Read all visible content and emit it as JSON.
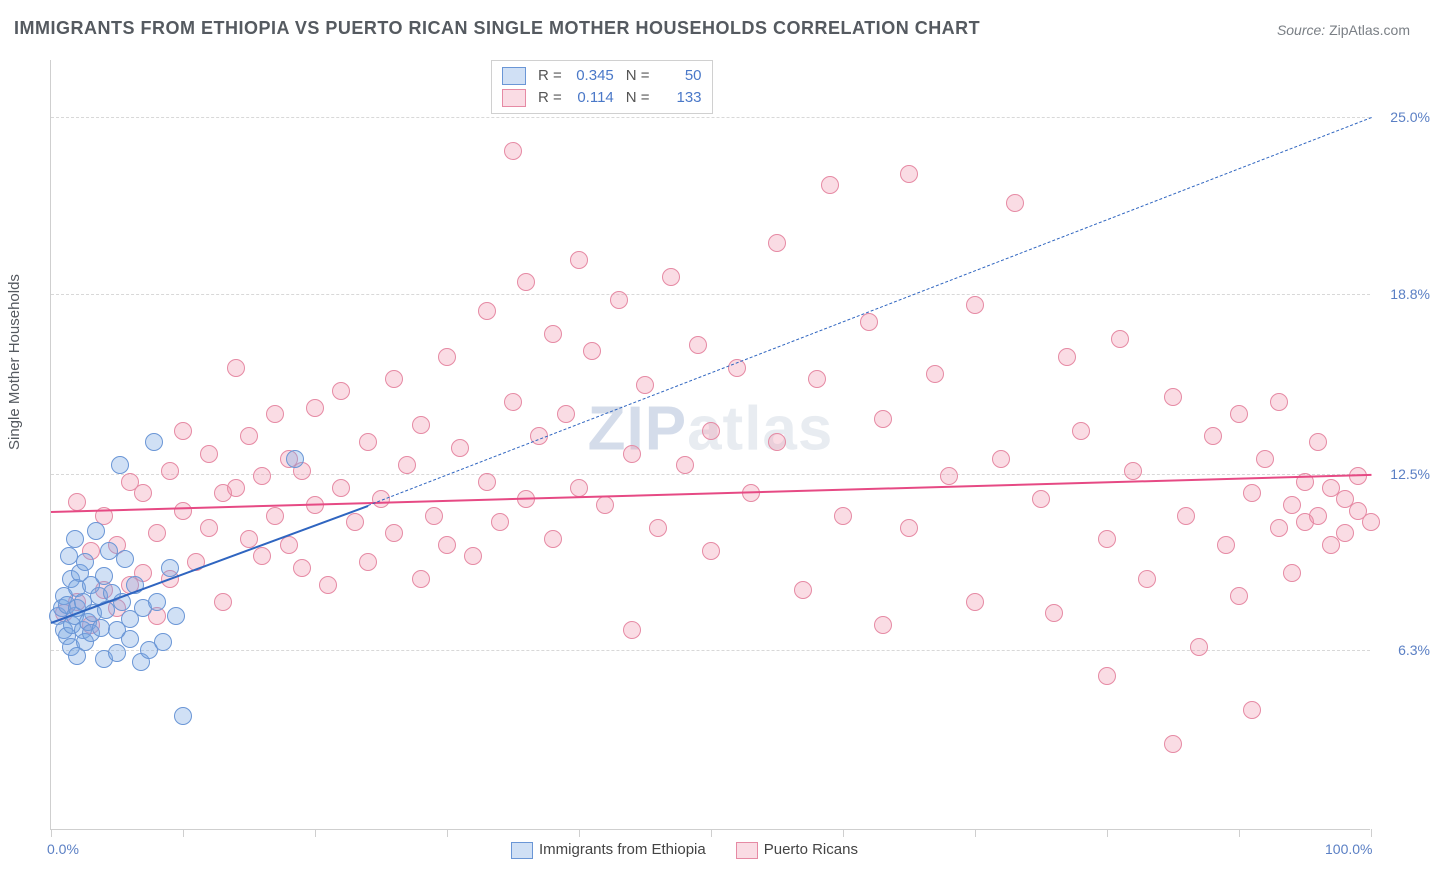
{
  "title": "IMMIGRANTS FROM ETHIOPIA VS PUERTO RICAN SINGLE MOTHER HOUSEHOLDS CORRELATION CHART",
  "source_label": "Source:",
  "source_value": "ZipAtlas.com",
  "yaxis_label": "Single Mother Households",
  "watermark": {
    "prefix": "ZIP",
    "suffix": "atlas"
  },
  "chart": {
    "type": "scatter",
    "background_color": "#ffffff",
    "xlim": [
      0,
      100
    ],
    "ylim": [
      0,
      27
    ],
    "ytick_values": [
      6.3,
      12.5,
      18.8,
      25.0
    ],
    "ytick_labels": [
      "6.3%",
      "12.5%",
      "18.8%",
      "25.0%"
    ],
    "xtick_positions": [
      0,
      10,
      20,
      30,
      40,
      50,
      60,
      70,
      80,
      90,
      100
    ],
    "xtick_labels": {
      "0": "0.0%",
      "100": "100.0%"
    },
    "grid_color": "#d8d8d8",
    "marker_radius": 9,
    "marker_border_width": 1.2,
    "series": [
      {
        "id": "ethiopia",
        "label": "Immigrants from Ethiopia",
        "fill_color": "rgba(120, 165, 225, 0.35)",
        "stroke_color": "#6a96d6",
        "R": "0.345",
        "N": "50",
        "trend": {
          "x1": 0,
          "y1": 7.3,
          "x2": 24,
          "y2": 11.4,
          "dash_x1": 24,
          "dash_y1": 11.4,
          "dash_x2": 100,
          "dash_y2": 25.0,
          "color": "#2f65c0",
          "width": 2.2
        },
        "points": [
          [
            0.5,
            7.5
          ],
          [
            0.8,
            7.8
          ],
          [
            1.0,
            7.0
          ],
          [
            1.0,
            8.2
          ],
          [
            1.2,
            6.8
          ],
          [
            1.2,
            7.9
          ],
          [
            1.4,
            9.6
          ],
          [
            1.5,
            6.4
          ],
          [
            1.5,
            8.8
          ],
          [
            1.6,
            7.2
          ],
          [
            1.8,
            7.5
          ],
          [
            1.8,
            10.2
          ],
          [
            2.0,
            6.1
          ],
          [
            2.0,
            7.8
          ],
          [
            2.0,
            8.5
          ],
          [
            2.2,
            9.0
          ],
          [
            2.4,
            7.0
          ],
          [
            2.4,
            8.0
          ],
          [
            2.6,
            6.6
          ],
          [
            2.6,
            9.4
          ],
          [
            2.8,
            7.3
          ],
          [
            3.0,
            8.6
          ],
          [
            3.0,
            6.9
          ],
          [
            3.2,
            7.6
          ],
          [
            3.4,
            10.5
          ],
          [
            3.6,
            8.2
          ],
          [
            3.8,
            7.1
          ],
          [
            4.0,
            8.9
          ],
          [
            4.0,
            6.0
          ],
          [
            4.2,
            7.7
          ],
          [
            4.4,
            9.8
          ],
          [
            4.6,
            8.3
          ],
          [
            5.0,
            7.0
          ],
          [
            5.0,
            6.2
          ],
          [
            5.2,
            12.8
          ],
          [
            5.4,
            8.0
          ],
          [
            5.6,
            9.5
          ],
          [
            6.0,
            7.4
          ],
          [
            6.0,
            6.7
          ],
          [
            6.4,
            8.6
          ],
          [
            6.8,
            5.9
          ],
          [
            7.0,
            7.8
          ],
          [
            7.4,
            6.3
          ],
          [
            7.8,
            13.6
          ],
          [
            8.0,
            8.0
          ],
          [
            8.5,
            6.6
          ],
          [
            9.0,
            9.2
          ],
          [
            9.5,
            7.5
          ],
          [
            10.0,
            4.0
          ],
          [
            18.5,
            13.0
          ]
        ]
      },
      {
        "id": "puerto_rican",
        "label": "Puerto Ricans",
        "fill_color": "rgba(240, 140, 165, 0.30)",
        "stroke_color": "#e68aa4",
        "R": "0.114",
        "N": "133",
        "trend": {
          "x1": 0,
          "y1": 11.2,
          "x2": 100,
          "y2": 12.5,
          "color": "#e64a84",
          "width": 2.6
        },
        "points": [
          [
            1,
            7.6
          ],
          [
            2,
            8.0
          ],
          [
            2,
            11.5
          ],
          [
            3,
            7.2
          ],
          [
            3,
            9.8
          ],
          [
            4,
            8.4
          ],
          [
            4,
            11.0
          ],
          [
            5,
            7.8
          ],
          [
            5,
            10.0
          ],
          [
            6,
            12.2
          ],
          [
            6,
            8.6
          ],
          [
            7,
            9.0
          ],
          [
            7,
            11.8
          ],
          [
            8,
            10.4
          ],
          [
            8,
            7.5
          ],
          [
            9,
            12.6
          ],
          [
            9,
            8.8
          ],
          [
            10,
            11.2
          ],
          [
            10,
            14.0
          ],
          [
            11,
            9.4
          ],
          [
            12,
            13.2
          ],
          [
            12,
            10.6
          ],
          [
            13,
            11.8
          ],
          [
            13,
            8.0
          ],
          [
            14,
            12.0
          ],
          [
            14,
            16.2
          ],
          [
            15,
            10.2
          ],
          [
            15,
            13.8
          ],
          [
            16,
            9.6
          ],
          [
            16,
            12.4
          ],
          [
            17,
            11.0
          ],
          [
            17,
            14.6
          ],
          [
            18,
            10.0
          ],
          [
            18,
            13.0
          ],
          [
            19,
            12.6
          ],
          [
            19,
            9.2
          ],
          [
            20,
            14.8
          ],
          [
            20,
            11.4
          ],
          [
            21,
            8.6
          ],
          [
            22,
            15.4
          ],
          [
            22,
            12.0
          ],
          [
            23,
            10.8
          ],
          [
            24,
            13.6
          ],
          [
            24,
            9.4
          ],
          [
            25,
            11.6
          ],
          [
            26,
            15.8
          ],
          [
            26,
            10.4
          ],
          [
            27,
            12.8
          ],
          [
            28,
            8.8
          ],
          [
            28,
            14.2
          ],
          [
            29,
            11.0
          ],
          [
            30,
            16.6
          ],
          [
            30,
            10.0
          ],
          [
            31,
            13.4
          ],
          [
            32,
            9.6
          ],
          [
            33,
            18.2
          ],
          [
            33,
            12.2
          ],
          [
            34,
            10.8
          ],
          [
            35,
            15.0
          ],
          [
            35,
            23.8
          ],
          [
            36,
            19.2
          ],
          [
            36,
            11.6
          ],
          [
            37,
            13.8
          ],
          [
            38,
            17.4
          ],
          [
            38,
            10.2
          ],
          [
            39,
            14.6
          ],
          [
            40,
            12.0
          ],
          [
            40,
            20.0
          ],
          [
            41,
            16.8
          ],
          [
            42,
            11.4
          ],
          [
            43,
            18.6
          ],
          [
            44,
            13.2
          ],
          [
            44,
            7.0
          ],
          [
            45,
            15.6
          ],
          [
            46,
            10.6
          ],
          [
            47,
            19.4
          ],
          [
            48,
            12.8
          ],
          [
            49,
            17.0
          ],
          [
            50,
            14.0
          ],
          [
            50,
            9.8
          ],
          [
            52,
            16.2
          ],
          [
            53,
            11.8
          ],
          [
            55,
            20.6
          ],
          [
            55,
            13.6
          ],
          [
            57,
            8.4
          ],
          [
            58,
            15.8
          ],
          [
            59,
            22.6
          ],
          [
            60,
            11.0
          ],
          [
            62,
            17.8
          ],
          [
            63,
            7.2
          ],
          [
            63,
            14.4
          ],
          [
            65,
            23.0
          ],
          [
            65,
            10.6
          ],
          [
            67,
            16.0
          ],
          [
            68,
            12.4
          ],
          [
            70,
            8.0
          ],
          [
            70,
            18.4
          ],
          [
            72,
            13.0
          ],
          [
            73,
            22.0
          ],
          [
            75,
            11.6
          ],
          [
            76,
            7.6
          ],
          [
            77,
            16.6
          ],
          [
            78,
            14.0
          ],
          [
            80,
            5.4
          ],
          [
            80,
            10.2
          ],
          [
            81,
            17.2
          ],
          [
            82,
            12.6
          ],
          [
            83,
            8.8
          ],
          [
            85,
            15.2
          ],
          [
            85,
            3.0
          ],
          [
            86,
            11.0
          ],
          [
            87,
            6.4
          ],
          [
            88,
            13.8
          ],
          [
            89,
            10.0
          ],
          [
            90,
            14.6
          ],
          [
            90,
            8.2
          ],
          [
            91,
            11.8
          ],
          [
            91,
            4.2
          ],
          [
            92,
            13.0
          ],
          [
            93,
            10.6
          ],
          [
            93,
            15.0
          ],
          [
            94,
            11.4
          ],
          [
            94,
            9.0
          ],
          [
            95,
            12.2
          ],
          [
            95,
            10.8
          ],
          [
            96,
            13.6
          ],
          [
            96,
            11.0
          ],
          [
            97,
            10.0
          ],
          [
            97,
            12.0
          ],
          [
            98,
            11.6
          ],
          [
            98,
            10.4
          ],
          [
            99,
            12.4
          ],
          [
            99,
            11.2
          ],
          [
            100,
            10.8
          ]
        ]
      }
    ]
  }
}
